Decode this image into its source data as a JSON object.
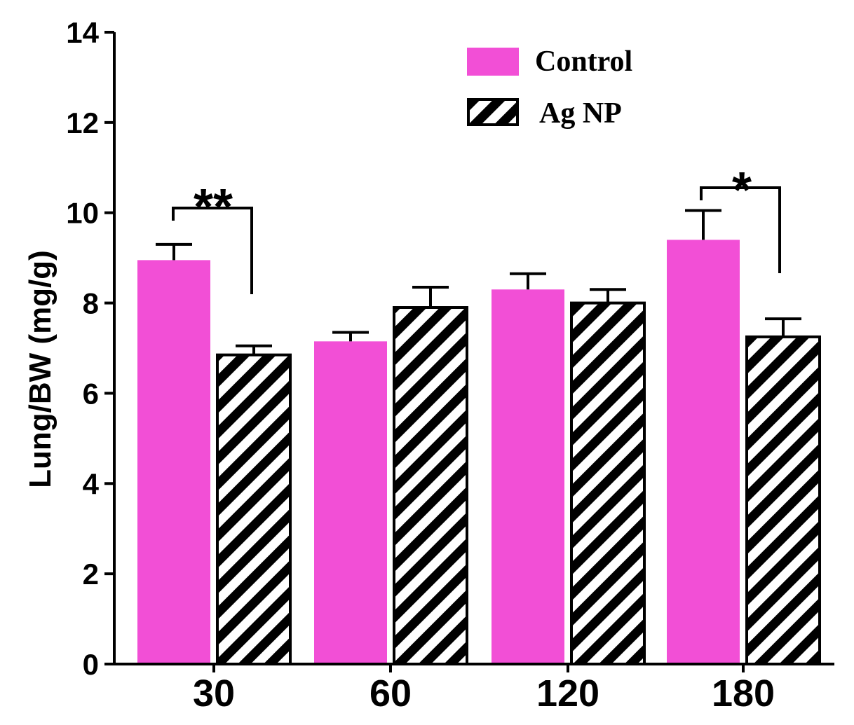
{
  "chart_data": {
    "type": "bar",
    "title": "",
    "xlabel": "",
    "ylabel": "Lung/BW (mg/g)",
    "ylim": [
      0,
      14
    ],
    "yticks": [
      0,
      2,
      4,
      6,
      8,
      10,
      12,
      14
    ],
    "categories": [
      "30",
      "60",
      "120",
      "180"
    ],
    "series": [
      {
        "name": "Control",
        "color": "#f24fd6",
        "pattern": "solid",
        "values": [
          8.95,
          7.15,
          8.3,
          9.4
        ],
        "errors": [
          0.35,
          0.2,
          0.35,
          0.65
        ]
      },
      {
        "name": "Ag NP",
        "color": "#000000",
        "pattern": "diagonal-hatch",
        "values": [
          6.85,
          7.9,
          8.0,
          7.25
        ],
        "errors": [
          0.2,
          0.45,
          0.3,
          0.4
        ]
      }
    ],
    "legend": {
      "position": "top-right"
    },
    "annotations": [
      {
        "label": "**",
        "category": "30"
      },
      {
        "label": "*",
        "category": "180"
      }
    ],
    "grid": false
  }
}
